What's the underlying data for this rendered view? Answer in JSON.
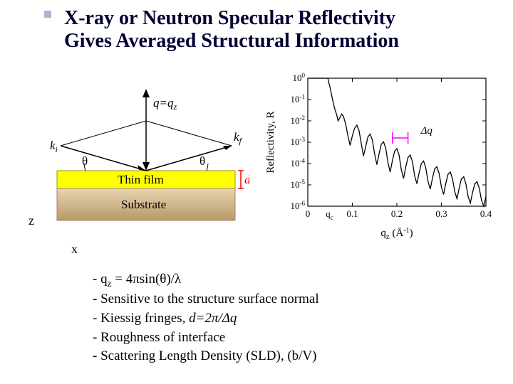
{
  "title": {
    "line1": "X-ray or Neutron Specular Reflectivity",
    "line2": "Gives Averaged Structural Information",
    "color": "#000033",
    "fontsize": 28
  },
  "diagram": {
    "q_label": "q=q",
    "q_sub": "z",
    "ki_label": "k",
    "ki_sub": "i",
    "kf_label": "k",
    "kf_sub": "f",
    "theta": "θ",
    "thinfilm": "Thin film",
    "substrate": "Substrate",
    "d_label": "d",
    "z_label": "z",
    "x_label": "x",
    "film_color": "#ffff00",
    "substrate_color_top": "#d2b48c",
    "substrate_color_bottom": "#8b6f47",
    "film_stroke": "#999900"
  },
  "chart": {
    "type": "line",
    "ylabel": "Reflectivity, R",
    "xlabel_prefix": "q",
    "xlabel_sub": "z",
    "xlabel_unit": " (Å",
    "xlabel_sup": "-1",
    "xlabel_close": ")",
    "ylim": [
      1e-06,
      1
    ],
    "xlim": [
      0,
      0.4
    ],
    "xticks": [
      0,
      0.1,
      0.2,
      0.3,
      0.4
    ],
    "ytick_exponents": [
      0,
      -1,
      -2,
      -3,
      -4,
      -5,
      -6
    ],
    "qc_label": "q",
    "qc_sub": "c",
    "qc_x": 0.045,
    "dq_label": "Δq",
    "dq_color": "#ff00ff",
    "dq_x1": 0.19,
    "dq_x2": 0.225,
    "curve_color": "#000000",
    "background": "#ffffff",
    "data": [
      [
        0.0,
        0.0
      ],
      [
        0.01,
        0.0
      ],
      [
        0.02,
        0.0
      ],
      [
        0.03,
        0.0
      ],
      [
        0.04,
        0.0
      ],
      [
        0.045,
        0.0
      ],
      [
        0.05,
        -0.45
      ],
      [
        0.055,
        -0.95
      ],
      [
        0.06,
        -1.4
      ],
      [
        0.065,
        -1.72
      ],
      [
        0.068,
        -2.0
      ],
      [
        0.072,
        -1.85
      ],
      [
        0.076,
        -1.68
      ],
      [
        0.08,
        -1.78
      ],
      [
        0.085,
        -2.15
      ],
      [
        0.09,
        -2.7
      ],
      [
        0.095,
        -3.15
      ],
      [
        0.1,
        -2.7
      ],
      [
        0.105,
        -2.35
      ],
      [
        0.11,
        -2.2
      ],
      [
        0.115,
        -2.45
      ],
      [
        0.12,
        -3.05
      ],
      [
        0.125,
        -3.65
      ],
      [
        0.13,
        -3.2
      ],
      [
        0.135,
        -2.75
      ],
      [
        0.14,
        -2.62
      ],
      [
        0.145,
        -2.9
      ],
      [
        0.15,
        -3.55
      ],
      [
        0.155,
        -4.05
      ],
      [
        0.16,
        -3.55
      ],
      [
        0.165,
        -3.1
      ],
      [
        0.17,
        -2.98
      ],
      [
        0.175,
        -3.28
      ],
      [
        0.18,
        -3.95
      ],
      [
        0.185,
        -4.4
      ],
      [
        0.19,
        -3.85
      ],
      [
        0.195,
        -3.42
      ],
      [
        0.2,
        -3.3
      ],
      [
        0.205,
        -3.6
      ],
      [
        0.21,
        -4.28
      ],
      [
        0.215,
        -4.7
      ],
      [
        0.22,
        -4.15
      ],
      [
        0.225,
        -3.72
      ],
      [
        0.23,
        -3.6
      ],
      [
        0.235,
        -3.92
      ],
      [
        0.24,
        -4.58
      ],
      [
        0.245,
        -4.95
      ],
      [
        0.25,
        -4.42
      ],
      [
        0.255,
        -4.0
      ],
      [
        0.26,
        -3.88
      ],
      [
        0.265,
        -4.2
      ],
      [
        0.27,
        -4.85
      ],
      [
        0.275,
        -5.2
      ],
      [
        0.28,
        -4.68
      ],
      [
        0.285,
        -4.25
      ],
      [
        0.29,
        -4.15
      ],
      [
        0.295,
        -4.48
      ],
      [
        0.3,
        -5.1
      ],
      [
        0.305,
        -5.45
      ],
      [
        0.31,
        -4.92
      ],
      [
        0.315,
        -4.5
      ],
      [
        0.32,
        -4.4
      ],
      [
        0.325,
        -4.72
      ],
      [
        0.33,
        -5.32
      ],
      [
        0.335,
        -5.65
      ],
      [
        0.34,
        -5.15
      ],
      [
        0.345,
        -4.72
      ],
      [
        0.35,
        -4.62
      ],
      [
        0.355,
        -4.95
      ],
      [
        0.36,
        -5.55
      ],
      [
        0.365,
        -5.85
      ],
      [
        0.37,
        -5.35
      ],
      [
        0.375,
        -4.95
      ],
      [
        0.38,
        -4.85
      ],
      [
        0.385,
        -5.15
      ],
      [
        0.39,
        -5.72
      ],
      [
        0.395,
        -6.0
      ],
      [
        0.4,
        -5.55
      ]
    ]
  },
  "bullets": {
    "b1_pre": "q",
    "b1_sub": "z",
    "b1_mid": " = 4πsin(θ)/λ",
    "b2": "Sensitive to the structure surface normal",
    "b3_pre": "Kiessig fringes, ",
    "b3_ital": "d=2π/Δq",
    "b4": "Roughness of interface",
    "b5": "Scattering Length Density (SLD),  (b/V)"
  }
}
